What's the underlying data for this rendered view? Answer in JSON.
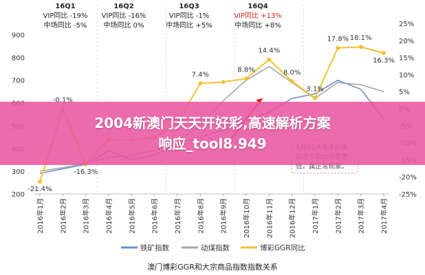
{
  "banner": {
    "line1": "2004新澳门天天开好彩,高速解析方案",
    "line2": "响应_tool8.949"
  },
  "chart_data": {
    "type": "line",
    "caption": "澳门博彩GGR和大宗商品指数指数关系",
    "x": [
      "2016年1月",
      "2016年2月",
      "2016年3月",
      "2016年4月",
      "2016年5月",
      "2016年6月",
      "2016年7月",
      "2016年8月",
      "2016年9月",
      "2016年10月",
      "2016年11月",
      "2016年12月",
      "2017年1月",
      "2017年2月",
      "2017年3月",
      "2017年4月"
    ],
    "y_left": {
      "ticks": [
        200,
        300,
        400,
        500,
        600,
        700,
        800,
        900
      ],
      "range": [
        200,
        950
      ]
    },
    "y_right": {
      "ticks": [
        "25%",
        "20%",
        "15%",
        "10%",
        "5%",
        "0%",
        "-5%",
        "-10%",
        "-15%",
        "-20%",
        "-25%"
      ],
      "range": [
        -25,
        25
      ]
    },
    "series": [
      {
        "name": "铁矿指数",
        "axis": "left",
        "color": "#6b8fc9",
        "values": [
          290,
          310,
          330,
          390,
          350,
          370,
          420,
          450,
          480,
          520,
          560,
          620,
          640,
          700,
          660,
          530
        ]
      },
      {
        "name": "动煤指数",
        "axis": "left",
        "color": "#a6a6a6",
        "values": [
          300,
          315,
          335,
          360,
          370,
          390,
          430,
          500,
          610,
          700,
          760,
          690,
          620,
          690,
          680,
          650
        ]
      },
      {
        "name": "博彩GGR同比",
        "axis": "right",
        "color": "#f2c130",
        "values": [
          -21.4,
          -0.1,
          -16.3,
          -9.0,
          -9.3,
          -8.5,
          -4.0,
          7.4,
          7.8,
          8.8,
          14.4,
          8.0,
          3.1,
          17.8,
          18.1,
          16.3
        ]
      }
    ],
    "data_labels": [
      "-21.4%",
      "-0.1%",
      "-16.3%",
      "7.4%",
      "8.8%",
      "14.4%",
      "8.0%",
      "3.1%",
      "17.8%",
      "18.1%",
      "16.3%"
    ],
    "quarters": [
      {
        "title": "16Q1",
        "vip": "VIP同比 -19%",
        "mass": "中场同比 -5%"
      },
      {
        "title": "16Q2",
        "vip": "VIP同比 -16%",
        "mass": "中场同比 0%"
      },
      {
        "title": "16Q3",
        "vip": "VIP同比 -1%",
        "mass": "中场同比 +5%"
      },
      {
        "title": "16Q4",
        "vip": "VIP同比 +13%",
        "mass": "中场同比 +8%"
      }
    ],
    "note": [
      "1月GGR增速放缓",
      "因春节前出行意愿",
      "低，属正常现象。"
    ],
    "colors": {
      "red_accent": "#e0201c"
    }
  }
}
